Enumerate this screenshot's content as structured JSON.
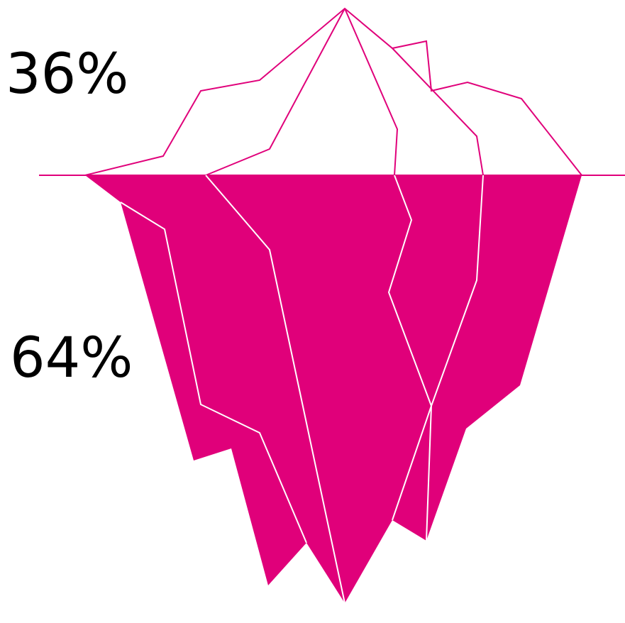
{
  "above_water": {
    "label": "36%"
  },
  "below_water": {
    "label": "64%"
  }
}
